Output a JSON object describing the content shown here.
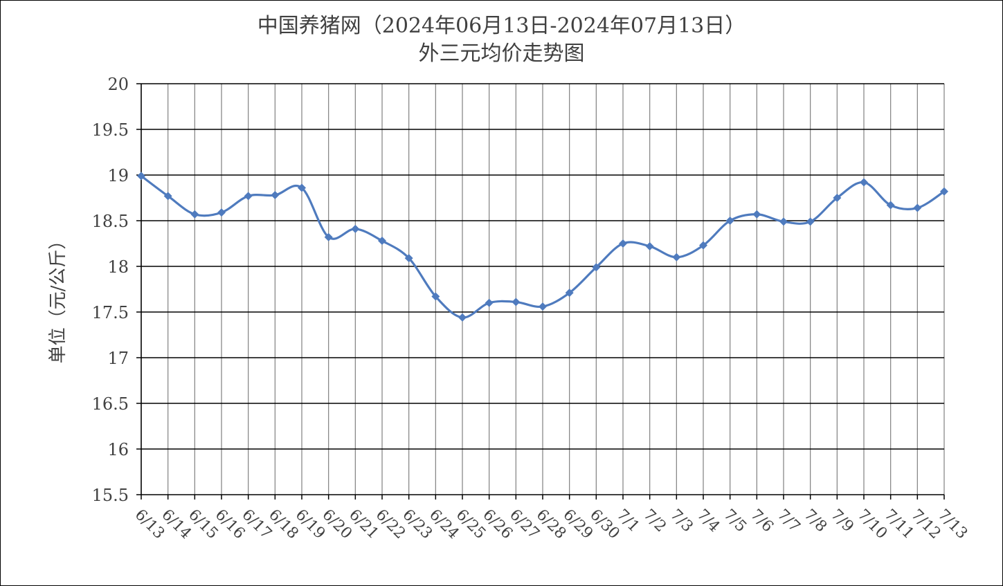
{
  "chart_data": {
    "type": "line",
    "title_line1": "中国养猪网（2024年06月13日-2024年07月13日）",
    "title_line2": "外三元均价走势图",
    "xlabel": "",
    "ylabel": "单位（元/公斤）",
    "ylim": [
      15.5,
      20
    ],
    "yticks": [
      15.5,
      16,
      16.5,
      17,
      17.5,
      18,
      18.5,
      19,
      19.5,
      20
    ],
    "ytick_labels": [
      "15.5",
      "16",
      "16.5",
      "17",
      "17.5",
      "18",
      "18.5",
      "19",
      "19.5",
      "20"
    ],
    "grid": true,
    "legend": "none",
    "categories": [
      "6/13",
      "6/14",
      "6/15",
      "6/16",
      "6/17",
      "6/18",
      "6/19",
      "6/20",
      "6/21",
      "6/22",
      "6/23",
      "6/24",
      "6/25",
      "6/26",
      "6/27",
      "6/28",
      "6/29",
      "6/30",
      "7/1",
      "7/2",
      "7/3",
      "7/4",
      "7/5",
      "7/6",
      "7/7",
      "7/8",
      "7/9",
      "7/10",
      "7/11",
      "7/12",
      "7/13"
    ],
    "series": [
      {
        "values": [
          18.99,
          18.77,
          18.57,
          18.59,
          18.77,
          18.78,
          18.86,
          18.32,
          18.41,
          18.28,
          18.09,
          17.67,
          17.44,
          17.6,
          17.61,
          17.56,
          17.71,
          17.99,
          18.25,
          18.22,
          18.1,
          18.23,
          18.5,
          18.57,
          18.49,
          18.49,
          18.75,
          18.92,
          18.67,
          18.64,
          18.82
        ],
        "color": "#4F7BBE"
      }
    ],
    "gridline_color": "#000000",
    "vertical_gridline_color": "#7f7f7f"
  }
}
